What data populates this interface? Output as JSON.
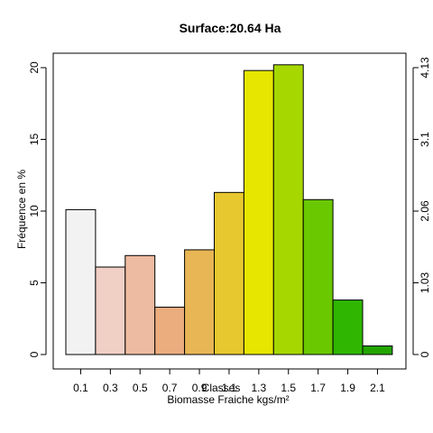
{
  "chart_data": {
    "type": "bar",
    "title": "Surface:20.64 Ha",
    "xlabel": "Biomasse Fraiche kgs/m²",
    "ylabel": "Fréquence en %",
    "overlay_label": "Classes",
    "categories": [
      "0.1",
      "0.3",
      "0.5",
      "0.7",
      "0.9",
      "1.1",
      "1.3",
      "1.5",
      "1.7",
      "1.9",
      "2.1"
    ],
    "values": [
      10.1,
      6.1,
      6.9,
      3.3,
      7.3,
      11.3,
      19.8,
      20.2,
      10.8,
      3.8,
      0.6
    ],
    "colors": [
      "#f2f2f2",
      "#f0cfc5",
      "#edbba1",
      "#ebac7e",
      "#e8b654",
      "#e8c82f",
      "#e6e600",
      "#a6d800",
      "#6ac800",
      "#2fb600",
      "#23a500"
    ],
    "ylim": [
      0,
      21
    ],
    "yticks": [
      "0",
      "5",
      "10",
      "15",
      "20"
    ],
    "right_axis": {
      "ticks": [
        "0",
        "1.03",
        "2.06",
        "3.1",
        "4.13"
      ]
    },
    "grid": false,
    "legend": "none"
  }
}
